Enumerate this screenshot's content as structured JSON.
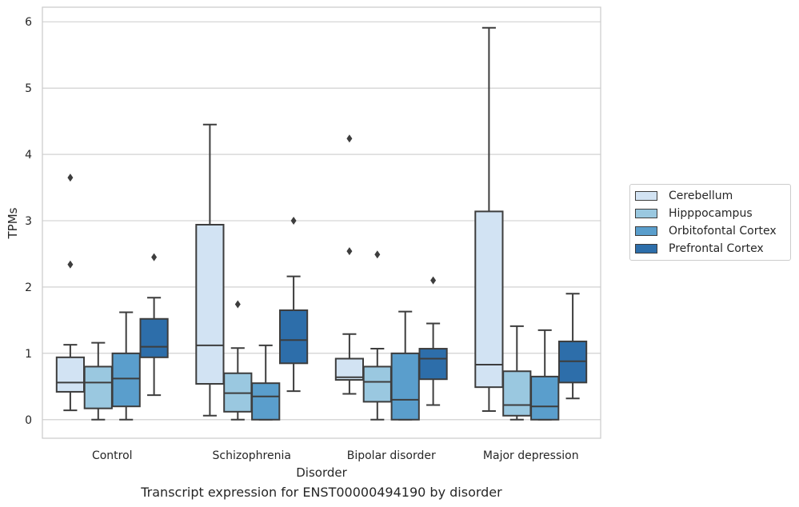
{
  "chart_data": {
    "type": "box",
    "xlabel": "Disorder",
    "ylabel": "TPMs",
    "caption": "Transcript expression for ENST00000494190 by disorder",
    "ylim": [
      -0.28,
      6.22
    ],
    "yticks": [
      0,
      1,
      2,
      3,
      4,
      5,
      6
    ],
    "grid": "horizontal",
    "legend_position": "center-right outside",
    "categories": [
      "Control",
      "Schizophrenia",
      "Bipolar disorder",
      "Major depression"
    ],
    "series": [
      {
        "name": "Cerebellum",
        "color": "#d2e3f3",
        "boxes": [
          {
            "whisker_low": 0.14,
            "q1": 0.42,
            "median": 0.56,
            "q3": 0.94,
            "whisker_high": 1.13,
            "outliers": [
              2.34,
              3.65
            ]
          },
          {
            "whisker_low": 0.06,
            "q1": 0.54,
            "median": 1.12,
            "q3": 2.94,
            "whisker_high": 4.45,
            "outliers": []
          },
          {
            "whisker_low": 0.39,
            "q1": 0.6,
            "median": 0.64,
            "q3": 0.92,
            "whisker_high": 1.29,
            "outliers": [
              2.54,
              4.24
            ]
          },
          {
            "whisker_low": 0.13,
            "q1": 0.49,
            "median": 0.83,
            "q3": 3.14,
            "whisker_high": 5.91,
            "outliers": []
          }
        ]
      },
      {
        "name": "Hipppocampus",
        "color": "#9ac8e0",
        "boxes": [
          {
            "whisker_low": 0.0,
            "q1": 0.17,
            "median": 0.56,
            "q3": 0.8,
            "whisker_high": 1.16,
            "outliers": []
          },
          {
            "whisker_low": 0.0,
            "q1": 0.12,
            "median": 0.4,
            "q3": 0.7,
            "whisker_high": 1.08,
            "outliers": [
              1.74
            ]
          },
          {
            "whisker_low": 0.0,
            "q1": 0.27,
            "median": 0.57,
            "q3": 0.8,
            "whisker_high": 1.07,
            "outliers": [
              2.49
            ]
          },
          {
            "whisker_low": 0.0,
            "q1": 0.06,
            "median": 0.22,
            "q3": 0.73,
            "whisker_high": 1.41,
            "outliers": []
          }
        ]
      },
      {
        "name": "Orbitofontal Cortex",
        "color": "#5a9ecc",
        "boxes": [
          {
            "whisker_low": 0.0,
            "q1": 0.2,
            "median": 0.62,
            "q3": 1.0,
            "whisker_high": 1.62,
            "outliers": []
          },
          {
            "whisker_low": 0.0,
            "q1": 0.0,
            "median": 0.35,
            "q3": 0.55,
            "whisker_high": 1.12,
            "outliers": []
          },
          {
            "whisker_low": 0.0,
            "q1": 0.0,
            "median": 0.3,
            "q3": 1.0,
            "whisker_high": 1.63,
            "outliers": []
          },
          {
            "whisker_low": 0.0,
            "q1": 0.0,
            "median": 0.2,
            "q3": 0.65,
            "whisker_high": 1.35,
            "outliers": []
          }
        ]
      },
      {
        "name": "Prefrontal Cortex",
        "color": "#2d6eaa",
        "boxes": [
          {
            "whisker_low": 0.37,
            "q1": 0.94,
            "median": 1.1,
            "q3": 1.52,
            "whisker_high": 1.84,
            "outliers": [
              2.45
            ]
          },
          {
            "whisker_low": 0.43,
            "q1": 0.85,
            "median": 1.2,
            "q3": 1.65,
            "whisker_high": 2.16,
            "outliers": [
              3.0
            ]
          },
          {
            "whisker_low": 0.22,
            "q1": 0.61,
            "median": 0.92,
            "q3": 1.07,
            "whisker_high": 1.45,
            "outliers": [
              2.1
            ]
          },
          {
            "whisker_low": 0.32,
            "q1": 0.56,
            "median": 0.88,
            "q3": 1.18,
            "whisker_high": 1.9,
            "outliers": []
          }
        ]
      }
    ]
  }
}
